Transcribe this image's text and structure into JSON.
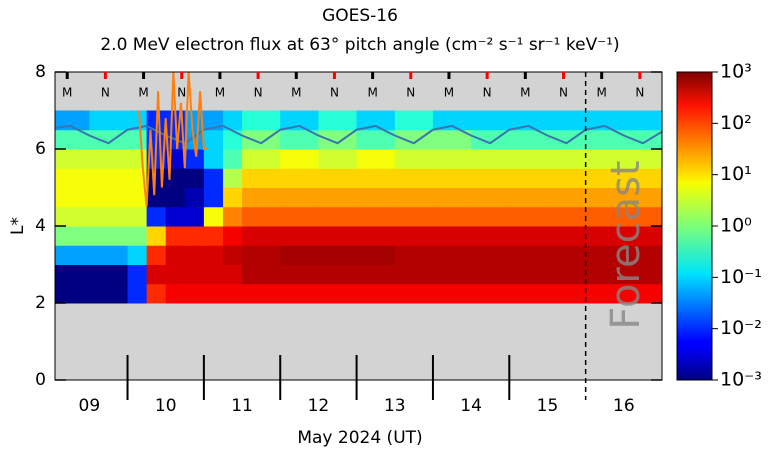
{
  "chart_data": {
    "type": "heatmap",
    "title": "GOES-16",
    "subtitle": "2.0 MeV electron flux at 63° pitch angle (cm⁻² s⁻¹ sr⁻¹ keV⁻¹)",
    "xlabel": "May 2024 (UT)",
    "ylabel": "L*",
    "xlim": [
      9.05,
      17.0
    ],
    "ylim": [
      0,
      8
    ],
    "yticks": [
      0,
      2,
      4,
      6,
      8
    ],
    "xticks": [
      {
        "value": 9.5,
        "label": "09"
      },
      {
        "value": 10.5,
        "label": "10"
      },
      {
        "value": 11.5,
        "label": "11"
      },
      {
        "value": 12.5,
        "label": "12"
      },
      {
        "value": 13.5,
        "label": "13"
      },
      {
        "value": 14.5,
        "label": "14"
      },
      {
        "value": 15.5,
        "label": "15"
      },
      {
        "value": 16.5,
        "label": "16"
      }
    ],
    "x_major_ticks": [
      10,
      11,
      12,
      13,
      14,
      15
    ],
    "forecast_x": 16.0,
    "annotation": "Forecast",
    "markers": [
      {
        "x": 9.21,
        "label": "M",
        "color": "#000000"
      },
      {
        "x": 9.71,
        "label": "N",
        "color": "#ff0000"
      },
      {
        "x": 10.21,
        "label": "M",
        "color": "#000000"
      },
      {
        "x": 10.71,
        "label": "N",
        "color": "#ff0000"
      },
      {
        "x": 11.21,
        "label": "M",
        "color": "#000000"
      },
      {
        "x": 11.71,
        "label": "N",
        "color": "#ff0000"
      },
      {
        "x": 12.21,
        "label": "M",
        "color": "#000000"
      },
      {
        "x": 12.71,
        "label": "N",
        "color": "#ff0000"
      },
      {
        "x": 13.21,
        "label": "M",
        "color": "#000000"
      },
      {
        "x": 13.71,
        "label": "N",
        "color": "#ff0000"
      },
      {
        "x": 14.21,
        "label": "M",
        "color": "#000000"
      },
      {
        "x": 14.71,
        "label": "N",
        "color": "#ff0000"
      },
      {
        "x": 15.21,
        "label": "M",
        "color": "#000000"
      },
      {
        "x": 15.71,
        "label": "N",
        "color": "#ff0000"
      },
      {
        "x": 16.21,
        "label": "M",
        "color": "#000000"
      },
      {
        "x": 16.71,
        "label": "N",
        "color": "#ff0000"
      }
    ],
    "z_x": [
      9.05,
      9.5,
      10.0,
      10.25,
      10.5,
      10.75,
      11.0,
      11.25,
      11.5,
      12.0,
      12.5,
      13.0,
      13.5,
      14.0,
      14.5,
      15.0,
      15.5,
      16.0,
      16.5,
      17.0
    ],
    "z_y": [
      2,
      2.5,
      3,
      3.5,
      4,
      4.5,
      5,
      5.5,
      6,
      6.5,
      7
    ],
    "z": [
      [
        0.001,
        0.001,
        0.01,
        100,
        200,
        200,
        200,
        200,
        200,
        200,
        200,
        200,
        200,
        200,
        200,
        200,
        200,
        200,
        200
      ],
      [
        0.001,
        0.001,
        0.01,
        300,
        300,
        300,
        300,
        300,
        500,
        500,
        500,
        500,
        500,
        500,
        500,
        500,
        500,
        500,
        500
      ],
      [
        0.05,
        0.05,
        0.1,
        100,
        300,
        300,
        300,
        400,
        500,
        600,
        600,
        600,
        500,
        500,
        500,
        500,
        500,
        500,
        500
      ],
      [
        1,
        1,
        1,
        10,
        100,
        100,
        100,
        200,
        300,
        300,
        300,
        300,
        300,
        300,
        300,
        300,
        300,
        300,
        300
      ],
      [
        3,
        3,
        3,
        0.01,
        0.003,
        0.003,
        5,
        30,
        50,
        50,
        50,
        50,
        50,
        50,
        50,
        50,
        50,
        50,
        50
      ],
      [
        5,
        5,
        5,
        0.001,
        0.001,
        0.002,
        0.01,
        10,
        20,
        20,
        20,
        20,
        20,
        20,
        20,
        20,
        20,
        20,
        20
      ],
      [
        5,
        5,
        5,
        0.001,
        0.001,
        0.001,
        0.01,
        2,
        10,
        10,
        10,
        10,
        10,
        10,
        10,
        10,
        10,
        10,
        10
      ],
      [
        3,
        3,
        3,
        0.01,
        0.003,
        0.01,
        0.1,
        0.5,
        3,
        5,
        3,
        5,
        3,
        3,
        3,
        3,
        3,
        3,
        3
      ],
      [
        0.5,
        0.5,
        0.5,
        0.01,
        0.01,
        0.05,
        0.1,
        0.3,
        1,
        0.5,
        1,
        0.5,
        1,
        1,
        0.5,
        0.5,
        0.5,
        0.5,
        0.5
      ],
      [
        0.05,
        0.1,
        0.1,
        0.01,
        0.01,
        0.05,
        0.05,
        0.1,
        0.3,
        0.1,
        0.3,
        0.1,
        0.3,
        0.1,
        0.1,
        0.1,
        0.1,
        0.1,
        0.1
      ]
    ],
    "zlim": [
      0.001,
      1000
    ],
    "zscale": "log",
    "zticks": [
      {
        "value": 0.001,
        "label": "10⁻³"
      },
      {
        "value": 0.01,
        "label": "10⁻²"
      },
      {
        "value": 0.1,
        "label": "10⁻¹"
      },
      {
        "value": 1,
        "label": "10⁰"
      },
      {
        "value": 10,
        "label": "10¹"
      },
      {
        "value": 100,
        "label": "10²"
      },
      {
        "value": 1000,
        "label": "10³"
      }
    ],
    "series": [
      {
        "color": "#3b75af",
        "x": [
          9.05,
          9.25,
          9.5,
          9.75,
          10.0,
          10.25,
          10.5,
          10.75,
          11.0,
          11.25,
          11.5,
          11.75,
          12.0,
          12.25,
          12.5,
          12.75,
          13.0,
          13.25,
          13.5,
          13.75,
          14.0,
          14.25,
          14.5,
          14.75,
          15.0,
          15.25,
          15.5,
          15.75,
          16.0,
          16.25,
          16.5,
          16.75,
          17.0
        ],
        "values": [
          6.55,
          6.6,
          6.35,
          6.15,
          6.5,
          6.6,
          6.35,
          6.15,
          6.5,
          6.6,
          6.35,
          6.15,
          6.5,
          6.6,
          6.35,
          6.15,
          6.5,
          6.6,
          6.35,
          6.15,
          6.5,
          6.6,
          6.35,
          6.15,
          6.5,
          6.6,
          6.35,
          6.15,
          6.5,
          6.6,
          6.35,
          6.15,
          6.45
        ]
      },
      {
        "color": "#ff7f0e",
        "x": [
          10.15,
          10.2,
          10.25,
          10.3,
          10.35,
          10.4,
          10.45,
          10.5,
          10.55,
          10.6,
          10.65,
          10.7,
          10.75,
          10.8,
          10.85,
          10.9,
          10.95,
          11.0,
          11.05
        ],
        "values": [
          7,
          5.5,
          4.5,
          6.5,
          4.8,
          7.5,
          5,
          6.8,
          5.2,
          8,
          6,
          7.2,
          5.5,
          8,
          6.5,
          5.8,
          7.5,
          6,
          6
        ]
      }
    ]
  }
}
